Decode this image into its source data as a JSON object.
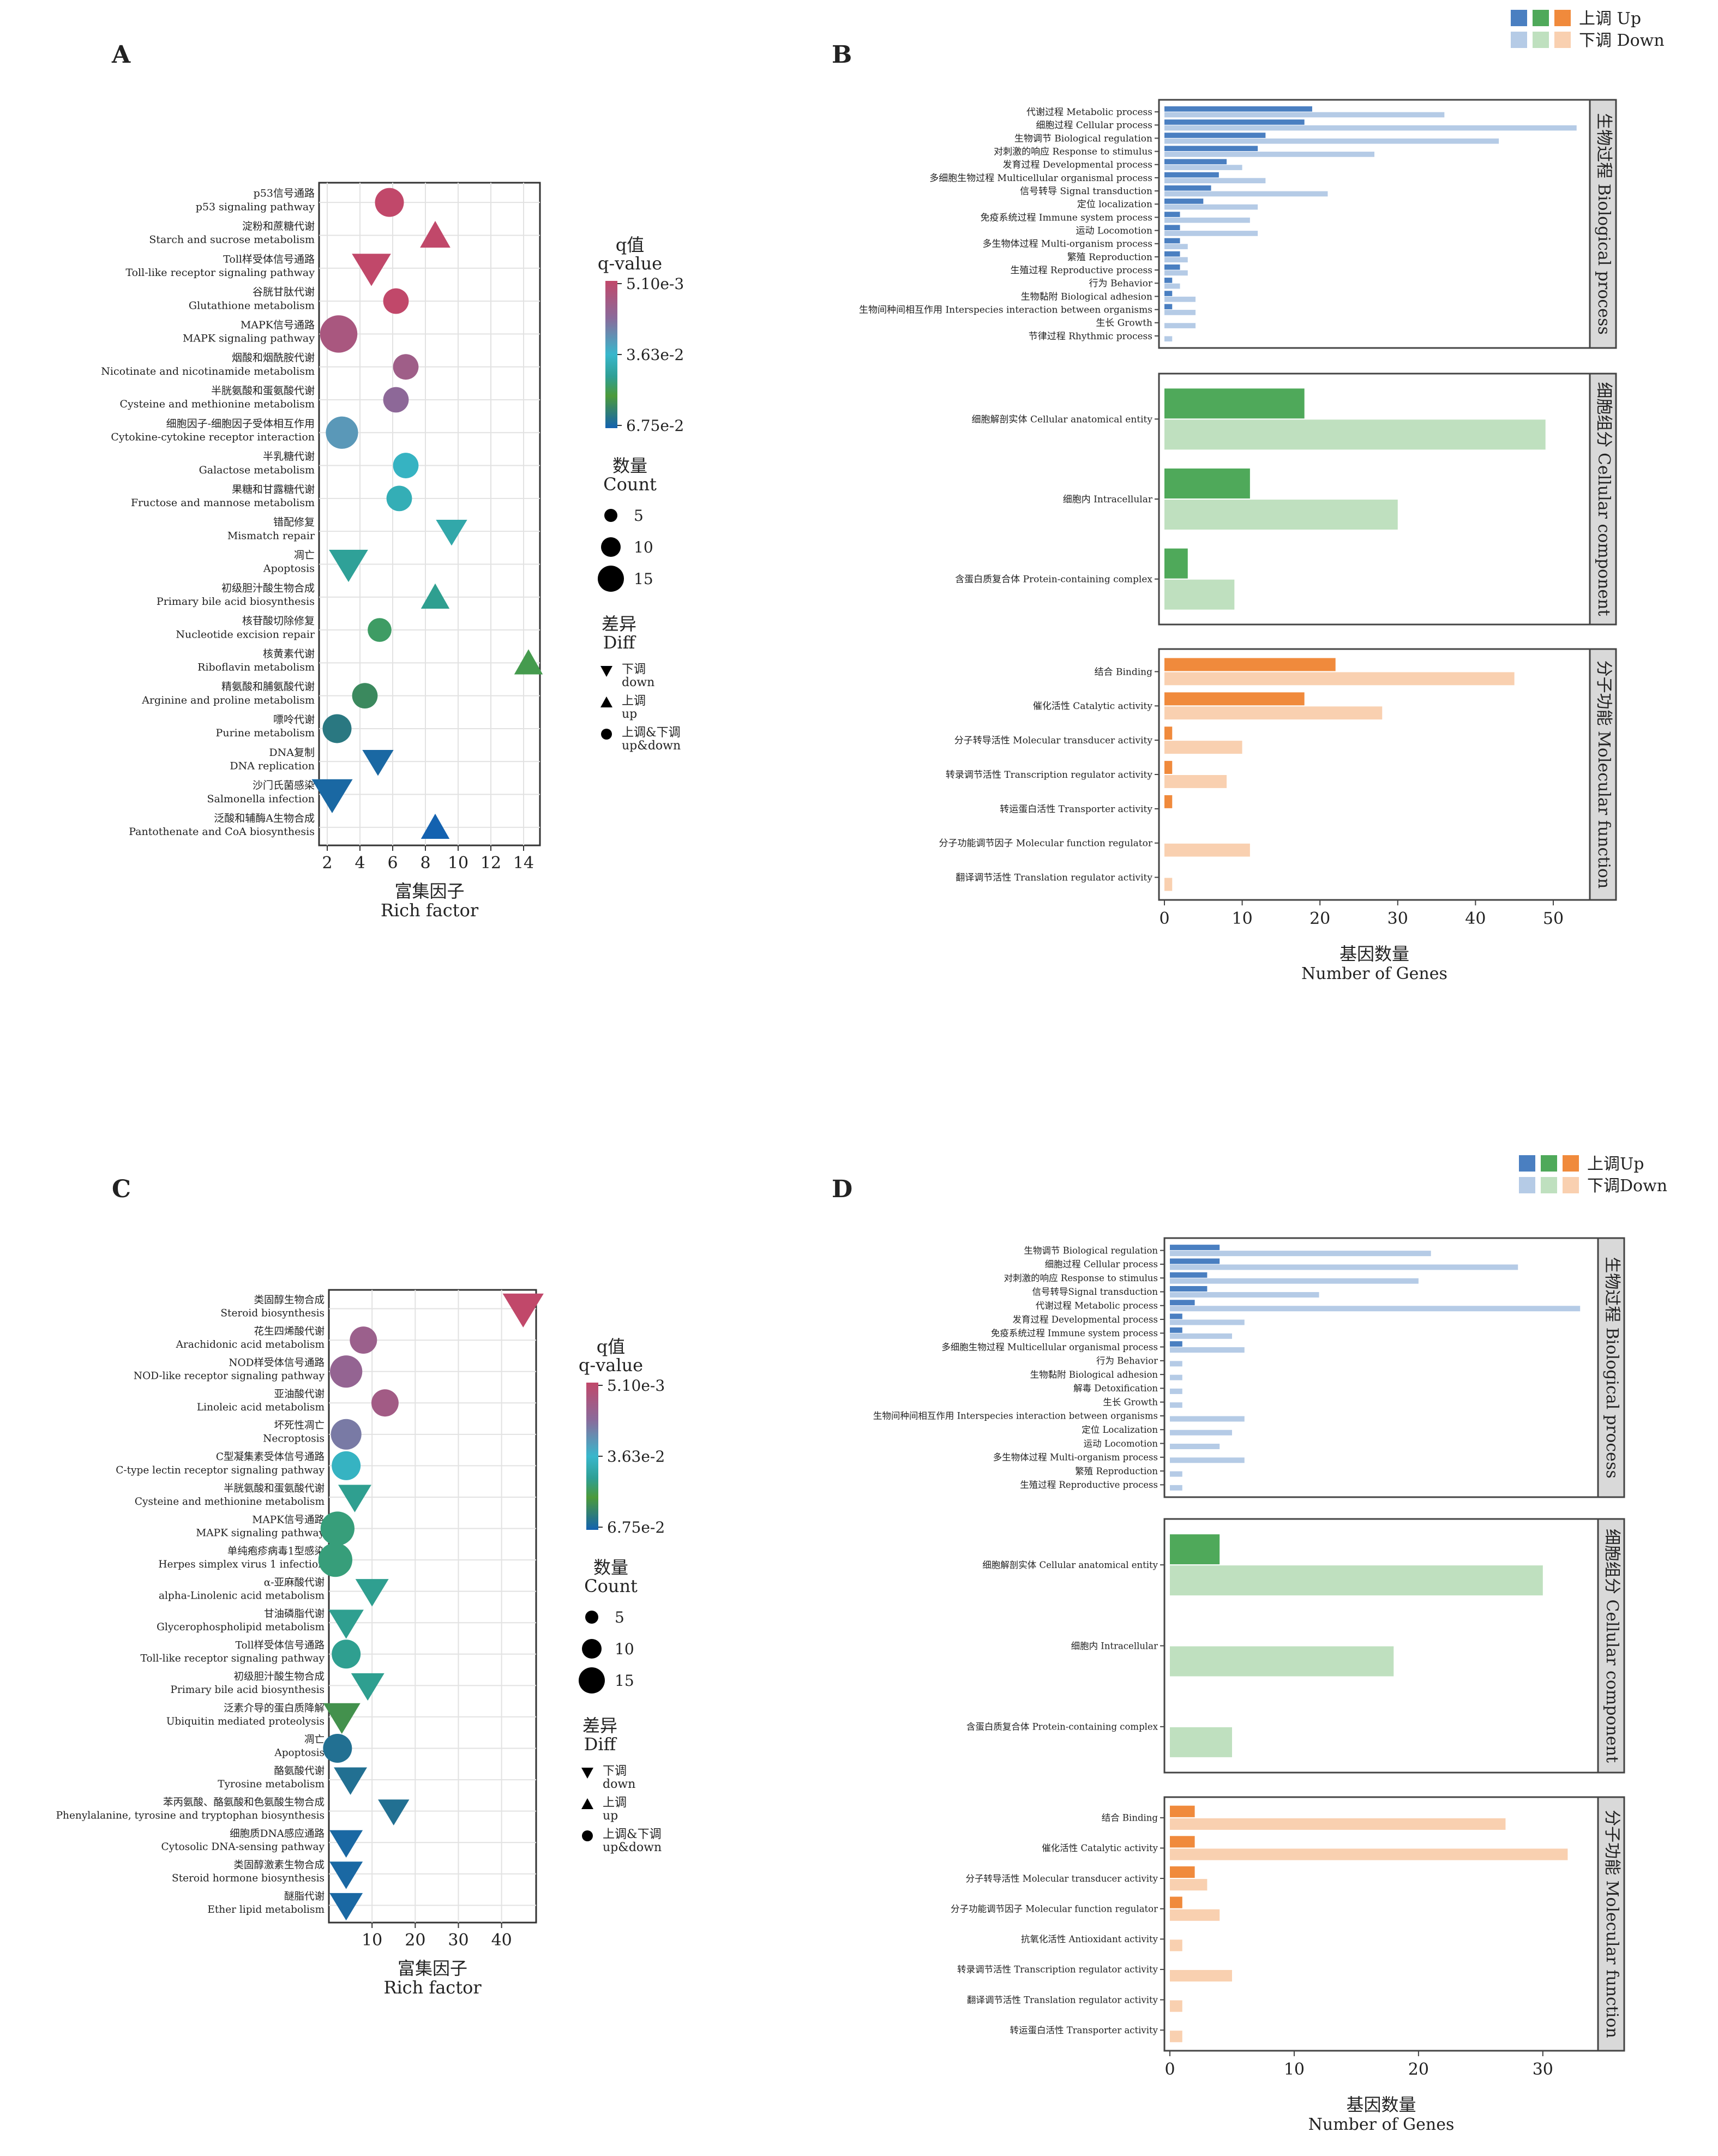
{
  "panel_labels": [
    "A",
    "B",
    "C",
    "D"
  ],
  "colors": {
    "bp_up": "#4a7fc1",
    "bp_down": "#b5cbe6",
    "cc_up": "#4fa95a",
    "cc_down": "#bfe0bf",
    "mf_up": "#f08a3c",
    "mf_down": "#f9d0b0",
    "strip_bg": "#d9d9d9"
  },
  "bubble_legend": {
    "qvalue_title_cn": "q值",
    "qvalue_title_en": "q-value",
    "count_title_cn": "数量",
    "count_title_en": "Count",
    "diff_title_cn": "差异",
    "diff_title_en": "Diff",
    "count_values": [
      "5",
      "10",
      "15"
    ],
    "diff_items": [
      {
        "shape": "down",
        "cn": "下调",
        "en": "down"
      },
      {
        "shape": "up",
        "cn": "上调",
        "en": "up"
      },
      {
        "shape": "circle",
        "cn": "上调&下调",
        "en": "up&down"
      }
    ]
  },
  "bar_legend": {
    "up_label_B": "上调 Up",
    "down_label_B": "下调 Down",
    "up_label_D": "上调Up",
    "down_label_D": "下调Down"
  },
  "chart_data": [
    {
      "panel": "A",
      "type": "scatter",
      "xlabel_cn": "富集因子",
      "xlabel_en": "Rich factor",
      "xlim": [
        1.5,
        15
      ],
      "xticks": [
        2,
        4,
        6,
        8,
        10,
        12,
        14
      ],
      "colorbar": {
        "labels": [
          "5.10e-3",
          "3.63e-2",
          "6.75e-2"
        ]
      },
      "points": [
        {
          "cn": "p53信号通路",
          "en": "p53 signaling pathway",
          "x": 5.8,
          "shape": "circle",
          "count": 10,
          "q": 0.0051
        },
        {
          "cn": "淀粉和蔗糖代谢",
          "en": "Starch and sucrose metabolism",
          "x": 8.6,
          "shape": "up",
          "count": 10,
          "q": 0.0051
        },
        {
          "cn": "Toll样受体信号通路",
          "en": "Toll-like receptor signaling pathway",
          "x": 4.7,
          "shape": "down",
          "count": 13,
          "q": 0.0051
        },
        {
          "cn": "谷胱甘肽代谢",
          "en": "Glutathione metabolism",
          "x": 6.2,
          "shape": "circle",
          "count": 8,
          "q": 0.0051
        },
        {
          "cn": "MAPK信号通路",
          "en": "MAPK signaling pathway",
          "x": 2.7,
          "shape": "circle",
          "count": 15,
          "q": 0.012
        },
        {
          "cn": "烟酸和烟酰胺代谢",
          "en": "Nicotinate and nicotinamide metabolism",
          "x": 6.8,
          "shape": "circle",
          "count": 8,
          "q": 0.015
        },
        {
          "cn": "半胱氨酸和蛋氨酸代谢",
          "en": "Cysteine and methionine metabolism",
          "x": 6.2,
          "shape": "circle",
          "count": 8,
          "q": 0.02
        },
        {
          "cn": "细胞因子-细胞因子受体相互作用",
          "en": "Cytokine-cytokine receptor interaction",
          "x": 2.9,
          "shape": "circle",
          "count": 12,
          "q": 0.03
        },
        {
          "cn": "半乳糖代谢",
          "en": "Galactose metabolism",
          "x": 6.8,
          "shape": "circle",
          "count": 8,
          "q": 0.038
        },
        {
          "cn": "果糖和甘露糖代谢",
          "en": "Fructose and mannose metabolism",
          "x": 6.4,
          "shape": "circle",
          "count": 8,
          "q": 0.04
        },
        {
          "cn": "错配修复",
          "en": "Mismatch repair",
          "x": 9.6,
          "shape": "down",
          "count": 9,
          "q": 0.042
        },
        {
          "cn": "凋亡",
          "en": "Apoptosis",
          "x": 3.3,
          "shape": "down",
          "count": 13,
          "q": 0.045
        },
        {
          "cn": "初级胆汁酸生物合成",
          "en": "Primary bile acid biosynthesis",
          "x": 8.6,
          "shape": "up",
          "count": 9,
          "q": 0.046
        },
        {
          "cn": "核苷酸切除修复",
          "en": "Nucleotide excision repair",
          "x": 5.2,
          "shape": "circle",
          "count": 7,
          "q": 0.05
        },
        {
          "cn": "核黄素代谢",
          "en": "Riboflavin metabolism",
          "x": 14.3,
          "shape": "up",
          "count": 9,
          "q": 0.052
        },
        {
          "cn": "精氨酸和脯氨酸代谢",
          "en": "Arginine and proline metabolism",
          "x": 4.3,
          "shape": "circle",
          "count": 8,
          "q": 0.058
        },
        {
          "cn": "嘌呤代谢",
          "en": "Purine metabolism",
          "x": 2.6,
          "shape": "circle",
          "count": 10,
          "q": 0.062
        },
        {
          "cn": "DNA复制",
          "en": "DNA replication",
          "x": 5.1,
          "shape": "down",
          "count": 9,
          "q": 0.066
        },
        {
          "cn": "沙门氏菌感染",
          "en": "Salmonella infection",
          "x": 2.3,
          "shape": "down",
          "count": 14,
          "q": 0.066
        },
        {
          "cn": "泛酸和辅酶A生物合成",
          "en": "Pantothenate and CoA biosynthesis",
          "x": 8.6,
          "shape": "up",
          "count": 9,
          "q": 0.0675
        }
      ]
    },
    {
      "panel": "B",
      "type": "bar",
      "orientation": "horizontal",
      "xlabel_cn": "基因数量",
      "xlabel_en": "Number of Genes",
      "xlim": [
        0,
        54
      ],
      "xticks": [
        0,
        10,
        20,
        30,
        40,
        50
      ],
      "groups": [
        {
          "strip_label": "生物过程 Biological process",
          "color_key": "bp",
          "items": [
            {
              "label": "代谢过程 Metabolic process",
              "up": 19,
              "down": 36
            },
            {
              "label": "细胞过程 Cellular process",
              "up": 18,
              "down": 53
            },
            {
              "label": "生物调节 Biological regulation",
              "up": 13,
              "down": 43
            },
            {
              "label": "对刺激的响应 Response to stimulus",
              "up": 12,
              "down": 27
            },
            {
              "label": "发育过程 Developmental process",
              "up": 8,
              "down": 10
            },
            {
              "label": "多细胞生物过程 Multicellular organismal process",
              "up": 7,
              "down": 13
            },
            {
              "label": "信号转导 Signal transduction",
              "up": 6,
              "down": 21
            },
            {
              "label": "定位 localization",
              "up": 5,
              "down": 12
            },
            {
              "label": "免疫系统过程 Immune system process",
              "up": 2,
              "down": 11
            },
            {
              "label": "运动 Locomotion",
              "up": 2,
              "down": 12
            },
            {
              "label": "多生物体过程 Multi-organism process",
              "up": 2,
              "down": 3
            },
            {
              "label": "繁殖 Reproduction",
              "up": 2,
              "down": 3
            },
            {
              "label": "生殖过程 Reproductive process",
              "up": 2,
              "down": 3
            },
            {
              "label": "行为 Behavior",
              "up": 1,
              "down": 2
            },
            {
              "label": "生物黏附 Biological adhesion",
              "up": 1,
              "down": 4
            },
            {
              "label": "生物间种间相互作用 Interspecies interaction between organisms",
              "up": 1,
              "down": 4
            },
            {
              "label": "生长 Growth",
              "up": 0,
              "down": 4
            },
            {
              "label": "节律过程 Rhythmic process",
              "up": 0,
              "down": 1
            }
          ]
        },
        {
          "strip_label": "细胞组分 Cellular component",
          "color_key": "cc",
          "items": [
            {
              "label": "细胞解剖实体 Cellular anatomical entity",
              "up": 18,
              "down": 49
            },
            {
              "label": "细胞内 Intracellular",
              "up": 11,
              "down": 30
            },
            {
              "label": "含蛋白质复合体 Protein-containing complex",
              "up": 3,
              "down": 9
            }
          ]
        },
        {
          "strip_label": "分子功能 Molecular function",
          "color_key": "mf",
          "items": [
            {
              "label": "结合 Binding",
              "up": 22,
              "down": 45
            },
            {
              "label": "催化活性 Catalytic activity",
              "up": 18,
              "down": 28
            },
            {
              "label": "分子转导活性 Molecular transducer activity",
              "up": 1,
              "down": 10
            },
            {
              "label": "转录调节活性 Transcription regulator activity",
              "up": 1,
              "down": 8
            },
            {
              "label": "转运蛋白活性 Transporter activity",
              "up": 1,
              "down": 0
            },
            {
              "label": "分子功能调节因子 Molecular function regulator",
              "up": 0,
              "down": 11
            },
            {
              "label": "翻译调节活性 Translation regulator activity",
              "up": 0,
              "down": 1
            }
          ]
        }
      ]
    },
    {
      "panel": "C",
      "type": "scatter",
      "xlabel_cn": "富集因子",
      "xlabel_en": "Rich factor",
      "xlim": [
        0,
        48
      ],
      "xticks": [
        10,
        20,
        30,
        40
      ],
      "colorbar": {
        "labels": [
          "5.10e-3",
          "3.63e-2",
          "6.75e-2"
        ]
      },
      "points": [
        {
          "cn": "类固醇生物合成",
          "en": "Steroid biosynthesis",
          "x": 45,
          "shape": "down",
          "count": 14,
          "q": 0.0051
        },
        {
          "cn": "花生四烯酸代谢",
          "en": "Arachidonic acid metabolism",
          "x": 8,
          "shape": "circle",
          "count": 9,
          "q": 0.016
        },
        {
          "cn": "NOD样受体信号通路",
          "en": "NOD-like receptor signaling pathway",
          "x": 4,
          "shape": "circle",
          "count": 12,
          "q": 0.018
        },
        {
          "cn": "亚油酸代谢",
          "en": "Linoleic acid metabolism",
          "x": 13,
          "shape": "circle",
          "count": 9,
          "q": 0.014
        },
        {
          "cn": "坏死性凋亡",
          "en": "Necroptosis",
          "x": 4,
          "shape": "circle",
          "count": 11,
          "q": 0.024
        },
        {
          "cn": "C型凝集素受体信号通路",
          "en": "C-type lectin receptor signaling pathway",
          "x": 4,
          "shape": "circle",
          "count": 10,
          "q": 0.038
        },
        {
          "cn": "半胱氨酸和蛋氨酸代谢",
          "en": "Cysteine and methionine metabolism",
          "x": 6,
          "shape": "down",
          "count": 10,
          "q": 0.046
        },
        {
          "cn": "MAPK信号通路",
          "en": "MAPK signaling pathway",
          "x": 2,
          "shape": "circle",
          "count": 13,
          "q": 0.048
        },
        {
          "cn": "单纯疱疹病毒1型感染",
          "en": "Herpes simplex virus 1 infection",
          "x": 1.5,
          "shape": "circle",
          "count": 13,
          "q": 0.048
        },
        {
          "cn": "α-亚麻酸代谢",
          "en": "alpha-Linolenic acid metabolism",
          "x": 10,
          "shape": "down",
          "count": 10,
          "q": 0.046
        },
        {
          "cn": "甘油磷脂代谢",
          "en": "Glycerophospholipid metabolism",
          "x": 4,
          "shape": "down",
          "count": 11,
          "q": 0.046
        },
        {
          "cn": "Toll样受体信号通路",
          "en": "Toll-like receptor signaling pathway",
          "x": 4,
          "shape": "circle",
          "count": 10,
          "q": 0.046
        },
        {
          "cn": "初级胆汁酸生物合成",
          "en": "Primary bile acid biosynthesis",
          "x": 9,
          "shape": "down",
          "count": 10,
          "q": 0.046
        },
        {
          "cn": "泛素介导的蛋白质降解",
          "en": "Ubiquitin mediated proteolysis",
          "x": 3,
          "shape": "down",
          "count": 12,
          "q": 0.056
        },
        {
          "cn": "凋亡",
          "en": "Apoptosis",
          "x": 2,
          "shape": "circle",
          "count": 10,
          "q": 0.064
        },
        {
          "cn": "酪氨酸代谢",
          "en": "Tyrosine metabolism",
          "x": 5,
          "shape": "down",
          "count": 10,
          "q": 0.064
        },
        {
          "cn": "苯丙氨酸、酪氨酸和色氨酸生物合成",
          "en": "Phenylalanine, tyrosine and tryptophan biosynthesis",
          "x": 15,
          "shape": "down",
          "count": 9,
          "q": 0.064
        },
        {
          "cn": "细胞质DNA感应通路",
          "en": "Cytosolic DNA-sensing pathway",
          "x": 4,
          "shape": "down",
          "count": 10,
          "q": 0.066
        },
        {
          "cn": "类固醇激素生物合成",
          "en": "Steroid hormone biosynthesis",
          "x": 4,
          "shape": "down",
          "count": 10,
          "q": 0.066
        },
        {
          "cn": "醚脂代谢",
          "en": "Ether lipid metabolism",
          "x": 4,
          "shape": "down",
          "count": 10,
          "q": 0.066
        }
      ]
    },
    {
      "panel": "D",
      "type": "bar",
      "orientation": "horizontal",
      "xlabel_cn": "基因数量",
      "xlabel_en": "Number of Genes",
      "xlim": [
        0,
        34
      ],
      "xticks": [
        0,
        10,
        20,
        30
      ],
      "groups": [
        {
          "strip_label": "生物过程 Biological process",
          "color_key": "bp",
          "items": [
            {
              "label": "生物调节 Biological regulation",
              "up": 4,
              "down": 21
            },
            {
              "label": "细胞过程 Cellular process",
              "up": 4,
              "down": 28
            },
            {
              "label": "对刺激的响应 Response to stimulus",
              "up": 3,
              "down": 20
            },
            {
              "label": "信号转导Signal transduction",
              "up": 3,
              "down": 12
            },
            {
              "label": "代谢过程 Metabolic process",
              "up": 2,
              "down": 33
            },
            {
              "label": "发育过程 Developmental process",
              "up": 1,
              "down": 6
            },
            {
              "label": "免疫系统过程 Immune system process",
              "up": 1,
              "down": 5
            },
            {
              "label": "多细胞生物过程 Multicellular organismal process",
              "up": 1,
              "down": 6
            },
            {
              "label": "行为 Behavior",
              "up": 0,
              "down": 1
            },
            {
              "label": "生物黏附 Biological adhesion",
              "up": 0,
              "down": 1
            },
            {
              "label": "解毒 Detoxification",
              "up": 0,
              "down": 1
            },
            {
              "label": "生长 Growth",
              "up": 0,
              "down": 1
            },
            {
              "label": "生物间种间相互作用 Interspecies interaction between organisms",
              "up": 0,
              "down": 6
            },
            {
              "label": "定位 Localization",
              "up": 0,
              "down": 5
            },
            {
              "label": "运动 Locomotion",
              "up": 0,
              "down": 4
            },
            {
              "label": "多生物体过程 Multi-organism process",
              "up": 0,
              "down": 6
            },
            {
              "label": "繁殖 Reproduction",
              "up": 0,
              "down": 1
            },
            {
              "label": "生殖过程 Reproductive process",
              "up": 0,
              "down": 1
            }
          ]
        },
        {
          "strip_label": "细胞组分 Cellular component",
          "color_key": "cc",
          "items": [
            {
              "label": "细胞解剖实体 Cellular anatomical entity",
              "up": 4,
              "down": 30
            },
            {
              "label": "细胞内 Intracellular",
              "up": 0,
              "down": 18
            },
            {
              "label": "含蛋白质复合体 Protein-containing complex",
              "up": 0,
              "down": 5
            }
          ]
        },
        {
          "strip_label": "分子功能 Molecular function",
          "color_key": "mf",
          "items": [
            {
              "label": "结合 Binding",
              "up": 2,
              "down": 27
            },
            {
              "label": "催化活性 Catalytic activity",
              "up": 2,
              "down": 32
            },
            {
              "label": "分子转导活性 Molecular transducer activity",
              "up": 2,
              "down": 3
            },
            {
              "label": "分子功能调节因子 Molecular function regulator",
              "up": 1,
              "down": 4
            },
            {
              "label": "抗氧化活性 Antioxidant activity",
              "up": 0,
              "down": 1
            },
            {
              "label": "转录调节活性 Transcription regulator activity",
              "up": 0,
              "down": 5
            },
            {
              "label": "翻译调节活性 Translation regulator activity",
              "up": 0,
              "down": 1
            },
            {
              "label": "转运蛋白活性 Transporter activity",
              "up": 0,
              "down": 1
            }
          ]
        }
      ]
    }
  ]
}
